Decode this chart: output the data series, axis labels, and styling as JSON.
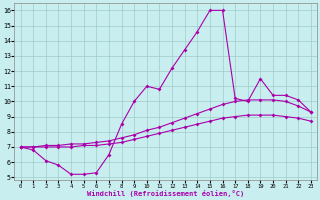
{
  "xlabel": "Windchill (Refroidissement éolien,°C)",
  "bg_color": "#c8eef0",
  "line_color": "#aa00aa",
  "grid_color": "#a0ccc8",
  "xlim": [
    -0.5,
    23.5
  ],
  "ylim": [
    4.8,
    16.5
  ],
  "yticks": [
    5,
    6,
    7,
    8,
    9,
    10,
    11,
    12,
    13,
    14,
    15,
    16
  ],
  "xticks": [
    0,
    1,
    2,
    3,
    4,
    5,
    6,
    7,
    8,
    9,
    10,
    11,
    12,
    13,
    14,
    15,
    16,
    17,
    18,
    19,
    20,
    21,
    22,
    23
  ],
  "line1_x": [
    0,
    1,
    2,
    3,
    4,
    5,
    6,
    7,
    8,
    9,
    10,
    11,
    12,
    13,
    14,
    15,
    16,
    17,
    18,
    19,
    20,
    21,
    22,
    23
  ],
  "line1_y": [
    7.0,
    6.8,
    6.1,
    5.8,
    5.2,
    5.2,
    5.3,
    6.5,
    8.5,
    10.0,
    11.0,
    10.8,
    12.2,
    13.4,
    14.6,
    16.0,
    16.0,
    10.2,
    10.0,
    11.5,
    10.4,
    10.4,
    10.1,
    9.3
  ],
  "line2_x": [
    0,
    1,
    2,
    3,
    4,
    5,
    6,
    7,
    8,
    9,
    10,
    11,
    12,
    13,
    14,
    15,
    16,
    17,
    18,
    19,
    20,
    21,
    22,
    23
  ],
  "line2_y": [
    7.0,
    7.0,
    7.1,
    7.1,
    7.2,
    7.2,
    7.3,
    7.4,
    7.6,
    7.8,
    8.1,
    8.3,
    8.6,
    8.9,
    9.2,
    9.5,
    9.8,
    10.0,
    10.1,
    10.1,
    10.1,
    10.0,
    9.7,
    9.3
  ],
  "line3_x": [
    0,
    1,
    2,
    3,
    4,
    5,
    6,
    7,
    8,
    9,
    10,
    11,
    12,
    13,
    14,
    15,
    16,
    17,
    18,
    19,
    20,
    21,
    22,
    23
  ],
  "line3_y": [
    7.0,
    7.0,
    7.0,
    7.0,
    7.0,
    7.1,
    7.1,
    7.2,
    7.3,
    7.5,
    7.7,
    7.9,
    8.1,
    8.3,
    8.5,
    8.7,
    8.9,
    9.0,
    9.1,
    9.1,
    9.1,
    9.0,
    8.9,
    8.7
  ]
}
